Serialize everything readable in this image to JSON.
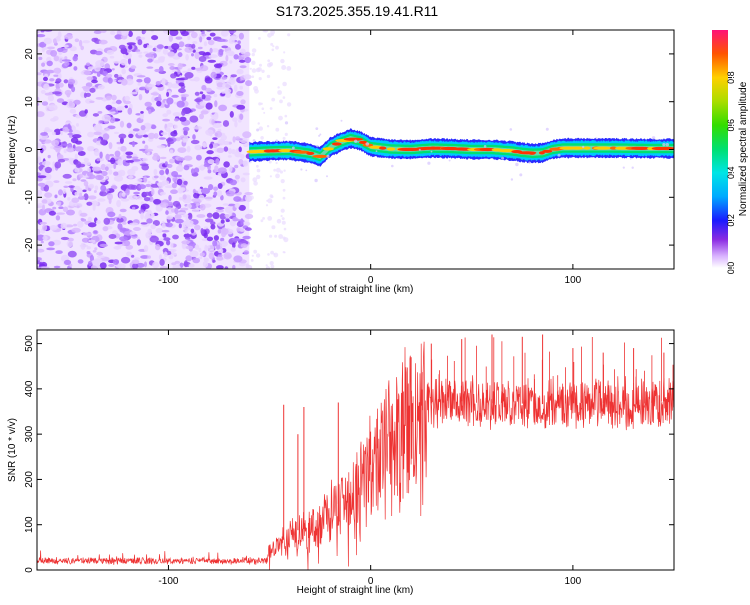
{
  "title": "S173.2025.355.19.41.R11",
  "chart_data": [
    {
      "type": "heatmap",
      "title": "S173.2025.355.19.41.R11",
      "xlabel": "Height of straight line (km)",
      "ylabel": "Frequency (Hz)",
      "xlim": [
        -165,
        150
      ],
      "ylim": [
        -25,
        25
      ],
      "xticks": [
        -100,
        0,
        100
      ],
      "yticks": [
        -20,
        -10,
        0,
        10,
        20
      ],
      "noise_region_x": [
        -165,
        -60
      ],
      "signal_trace": {
        "x": [
          -60,
          -50,
          -40,
          -30,
          -25,
          -20,
          -15,
          -10,
          -5,
          0,
          10,
          20,
          30,
          40,
          50,
          60,
          70,
          75,
          80,
          85,
          90,
          95,
          100,
          120,
          140,
          150
        ],
        "y": [
          -0.5,
          -0.3,
          -0.2,
          -0.8,
          -1.5,
          0.5,
          1.5,
          2.3,
          1.8,
          0.6,
          0.1,
          0,
          0.3,
          0.2,
          0,
          0,
          -0.3,
          -0.6,
          -0.8,
          -0.7,
          0,
          0.3,
          0.3,
          0.3,
          0.2,
          0.2
        ]
      },
      "colorbar": {
        "label": "Normalized spectral amplitude",
        "range": [
          0,
          1
        ],
        "ticks": [
          "0.0",
          "0.2",
          "0.4",
          "0.6",
          "0.8"
        ]
      }
    },
    {
      "type": "line",
      "title": "",
      "xlabel": "Height of straight line (km)",
      "ylabel": "SNR (10 * v/v)",
      "xlim": [
        -165,
        150
      ],
      "ylim": [
        0,
        530
      ],
      "xticks": [
        -100,
        0,
        100
      ],
      "yticks": [
        0,
        100,
        200,
        300,
        400,
        500
      ],
      "color": "#ee3333",
      "envelope": {
        "x": [
          -165,
          -60,
          -52,
          -50,
          -45,
          -40,
          -35,
          -30,
          -25,
          -20,
          -15,
          -10,
          -5,
          0,
          5,
          10,
          15,
          20,
          25,
          30,
          40,
          50,
          60,
          70,
          80,
          90,
          100,
          110,
          120,
          130,
          140,
          150
        ],
        "y": [
          20,
          20,
          20,
          40,
          60,
          80,
          90,
          95,
          110,
          130,
          150,
          175,
          200,
          215,
          245,
          275,
          305,
          330,
          350,
          368,
          375,
          370,
          368,
          370,
          365,
          368,
          368,
          370,
          368,
          365,
          370,
          375
        ]
      },
      "spikes": [
        {
          "x": -43,
          "y": 365
        },
        {
          "x": -36,
          "y": 300
        },
        {
          "x": -33,
          "y": 360
        },
        {
          "x": -16,
          "y": 370
        },
        {
          "x": 20,
          "y": 470
        },
        {
          "x": 30,
          "y": 500
        },
        {
          "x": 45,
          "y": 510
        },
        {
          "x": 60,
          "y": 520
        },
        {
          "x": 75,
          "y": 515
        },
        {
          "x": 85,
          "y": 520
        },
        {
          "x": 100,
          "y": 490
        },
        {
          "x": 115,
          "y": 480
        },
        {
          "x": 130,
          "y": 490
        },
        {
          "x": 145,
          "y": 480
        }
      ]
    }
  ]
}
